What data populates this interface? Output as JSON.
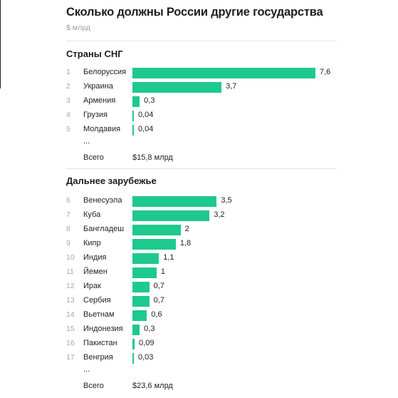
{
  "title": "Сколько должны России другие государства",
  "subtitle": "$ млрд",
  "colors": {
    "bar": "#1ec98d"
  },
  "chart_data": [
    {
      "type": "bar",
      "orientation": "horizontal",
      "title": "Страны СНГ",
      "categories": [
        "Белоруссия",
        "Украина",
        "Армения",
        "Грузия",
        "Молдавия"
      ],
      "ranks": [
        "1",
        "2",
        "3",
        "4",
        "5"
      ],
      "values": [
        7.6,
        3.7,
        0.3,
        0.04,
        0.04
      ],
      "value_labels": [
        "7,6",
        "3,7",
        "0,3",
        "0,04",
        "0,04"
      ],
      "ellipsis": "...",
      "total_label": "Всего",
      "total_value": "$15,8 млрд",
      "xlim": [
        0,
        7.6
      ],
      "grid": false
    },
    {
      "type": "bar",
      "orientation": "horizontal",
      "title": "Дальнее зарубежье",
      "categories": [
        "Венесуэла",
        "Куба",
        "Бангладеш",
        "Кипр",
        "Индия",
        "Йемен",
        "Ирак",
        "Сербия",
        "Вьетнам",
        "Индонезия",
        "Пакистан",
        "Венгрия"
      ],
      "ranks": [
        "6",
        "7",
        "8",
        "9",
        "10",
        "11",
        "12",
        "13",
        "14",
        "15",
        "16",
        "17"
      ],
      "values": [
        3.5,
        3.2,
        2,
        1.8,
        1.1,
        1,
        0.7,
        0.7,
        0.6,
        0.3,
        0.09,
        0.03
      ],
      "value_labels": [
        "3,5",
        "3,2",
        "2",
        "1,8",
        "1,1",
        "1",
        "0,7",
        "0,7",
        "0,6",
        "0,3",
        "0,09",
        "0,03"
      ],
      "ellipsis": "...",
      "total_label": "Всего",
      "total_value": "$23,6 млрд",
      "xlim": [
        0,
        7.6
      ],
      "grid": false
    }
  ]
}
